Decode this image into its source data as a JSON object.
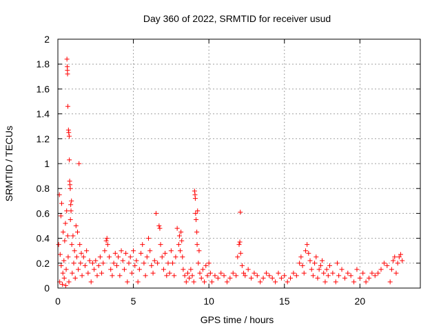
{
  "chart_data": {
    "type": "scatter",
    "title": "Day 360 of 2022, SRMTID for receiver usud",
    "xlabel": "GPS time / hours",
    "ylabel": "SRMTID / TECUs",
    "xlim": [
      0,
      24
    ],
    "ylim": [
      0,
      2
    ],
    "xticks": [
      0,
      5,
      10,
      15,
      20
    ],
    "xtick_labels": [
      "0",
      "5",
      "10",
      "15",
      "20"
    ],
    "yticks": [
      0,
      0.2,
      0.4,
      0.6,
      0.8,
      1.0,
      1.2,
      1.4,
      1.6,
      1.8,
      2.0
    ],
    "ytick_labels": [
      "0",
      "0.2",
      "0.4",
      "0.6",
      "0.8",
      "1",
      "1.2",
      "1.4",
      "1.6",
      "1.8",
      "2"
    ],
    "grid": true,
    "marker": "+",
    "marker_color": "#ff0000",
    "series": [
      {
        "name": "SRMTID",
        "points": [
          [
            0.05,
            0.35
          ],
          [
            0.1,
            0.75
          ],
          [
            0.12,
            0.05
          ],
          [
            0.15,
            0.27
          ],
          [
            0.2,
            0.58
          ],
          [
            0.22,
            0.18
          ],
          [
            0.25,
            0.68
          ],
          [
            0.3,
            0.03
          ],
          [
            0.33,
            0.12
          ],
          [
            0.35,
            0.45
          ],
          [
            0.4,
            0.22
          ],
          [
            0.42,
            0.08
          ],
          [
            0.45,
            0.38
          ],
          [
            0.5,
            0.52
          ],
          [
            0.52,
            0.02
          ],
          [
            0.55,
            0.15
          ],
          [
            0.58,
            0.62
          ],
          [
            0.6,
            1.84
          ],
          [
            0.62,
            1.78
          ],
          [
            0.63,
            1.75
          ],
          [
            0.64,
            1.72
          ],
          [
            0.65,
            0.42
          ],
          [
            0.66,
            1.46
          ],
          [
            0.68,
            0.25
          ],
          [
            0.7,
            1.27
          ],
          [
            0.72,
            1.25
          ],
          [
            0.73,
            0.05
          ],
          [
            0.75,
            1.22
          ],
          [
            0.76,
            1.03
          ],
          [
            0.78,
            0.86
          ],
          [
            0.8,
            0.83
          ],
          [
            0.82,
            0.8
          ],
          [
            0.83,
            0.55
          ],
          [
            0.85,
            0.67
          ],
          [
            0.87,
            0.62
          ],
          [
            0.9,
            0.7
          ],
          [
            0.92,
            0.35
          ],
          [
            0.95,
            0.12
          ],
          [
            1.0,
            0.42
          ],
          [
            1.05,
            0.2
          ],
          [
            1.1,
            0.3
          ],
          [
            1.15,
            0.08
          ],
          [
            1.2,
            0.5
          ],
          [
            1.25,
            0.25
          ],
          [
            1.3,
            0.45
          ],
          [
            1.35,
            0.15
          ],
          [
            1.4,
            1.0
          ],
          [
            1.45,
            0.35
          ],
          [
            1.5,
            0.2
          ],
          [
            1.55,
            0.28
          ],
          [
            1.6,
            0.1
          ],
          [
            1.7,
            0.25
          ],
          [
            1.8,
            0.18
          ],
          [
            1.9,
            0.3
          ],
          [
            2.0,
            0.12
          ],
          [
            2.1,
            0.22
          ],
          [
            2.2,
            0.05
          ],
          [
            2.3,
            0.2
          ],
          [
            2.4,
            0.15
          ],
          [
            2.5,
            0.22
          ],
          [
            2.6,
            0.1
          ],
          [
            2.7,
            0.18
          ],
          [
            2.8,
            0.25
          ],
          [
            2.9,
            0.12
          ],
          [
            3.0,
            0.2
          ],
          [
            3.1,
            0.3
          ],
          [
            3.2,
            0.38
          ],
          [
            3.25,
            0.4
          ],
          [
            3.3,
            0.35
          ],
          [
            3.4,
            0.25
          ],
          [
            3.5,
            0.15
          ],
          [
            3.6,
            0.1
          ],
          [
            3.7,
            0.2
          ],
          [
            3.8,
            0.28
          ],
          [
            3.9,
            0.18
          ],
          [
            4.0,
            0.25
          ],
          [
            4.1,
            0.1
          ],
          [
            4.2,
            0.3
          ],
          [
            4.3,
            0.22
          ],
          [
            4.4,
            0.15
          ],
          [
            4.5,
            0.28
          ],
          [
            4.6,
            0.05
          ],
          [
            4.7,
            0.2
          ],
          [
            4.8,
            0.25
          ],
          [
            4.9,
            0.12
          ],
          [
            5.0,
            0.3
          ],
          [
            5.1,
            0.18
          ],
          [
            5.2,
            0.22
          ],
          [
            5.3,
            0.05
          ],
          [
            5.4,
            0.15
          ],
          [
            5.5,
            0.28
          ],
          [
            5.6,
            0.35
          ],
          [
            5.7,
            0.2
          ],
          [
            5.8,
            0.1
          ],
          [
            5.9,
            0.25
          ],
          [
            6.0,
            0.4
          ],
          [
            6.1,
            0.3
          ],
          [
            6.2,
            0.18
          ],
          [
            6.3,
            0.12
          ],
          [
            6.4,
            0.22
          ],
          [
            6.5,
            0.6
          ],
          [
            6.6,
            0.2
          ],
          [
            6.7,
            0.5
          ],
          [
            6.75,
            0.48
          ],
          [
            6.8,
            0.35
          ],
          [
            6.9,
            0.25
          ],
          [
            7.0,
            0.15
          ],
          [
            7.1,
            0.28
          ],
          [
            7.2,
            0.1
          ],
          [
            7.3,
            0.2
          ],
          [
            7.4,
            0.12
          ],
          [
            7.5,
            0.3
          ],
          [
            7.6,
            0.2
          ],
          [
            7.7,
            0.1
          ],
          [
            7.8,
            0.25
          ],
          [
            7.9,
            0.48
          ],
          [
            8.0,
            0.35
          ],
          [
            8.05,
            0.42
          ],
          [
            8.1,
            0.3
          ],
          [
            8.15,
            0.45
          ],
          [
            8.2,
            0.38
          ],
          [
            8.25,
            0.25
          ],
          [
            8.3,
            0.15
          ],
          [
            8.4,
            0.1
          ],
          [
            8.5,
            0.05
          ],
          [
            8.6,
            0.12
          ],
          [
            8.7,
            0.08
          ],
          [
            8.8,
            0.15
          ],
          [
            8.9,
            0.1
          ],
          [
            9.0,
            0.05
          ],
          [
            9.05,
            0.78
          ],
          [
            9.08,
            0.75
          ],
          [
            9.1,
            0.72
          ],
          [
            9.12,
            0.6
          ],
          [
            9.15,
            0.55
          ],
          [
            9.2,
            0.45
          ],
          [
            9.22,
            0.35
          ],
          [
            9.25,
            0.62
          ],
          [
            9.3,
            0.2
          ],
          [
            9.35,
            0.3
          ],
          [
            9.4,
            0.12
          ],
          [
            9.5,
            0.08
          ],
          [
            9.6,
            0.15
          ],
          [
            9.7,
            0.05
          ],
          [
            9.8,
            0.18
          ],
          [
            9.9,
            0.1
          ],
          [
            10.0,
            0.2
          ],
          [
            10.1,
            0.12
          ],
          [
            10.2,
            0.05
          ],
          [
            10.4,
            0.1
          ],
          [
            10.6,
            0.08
          ],
          [
            10.8,
            0.12
          ],
          [
            11.0,
            0.1
          ],
          [
            11.2,
            0.05
          ],
          [
            11.4,
            0.08
          ],
          [
            11.6,
            0.12
          ],
          [
            11.8,
            0.1
          ],
          [
            11.9,
            0.25
          ],
          [
            12.0,
            0.35
          ],
          [
            12.05,
            0.37
          ],
          [
            12.08,
            0.61
          ],
          [
            12.1,
            0.28
          ],
          [
            12.2,
            0.18
          ],
          [
            12.3,
            0.12
          ],
          [
            12.4,
            0.1
          ],
          [
            12.6,
            0.15
          ],
          [
            12.8,
            0.08
          ],
          [
            13.0,
            0.12
          ],
          [
            13.2,
            0.1
          ],
          [
            13.4,
            0.05
          ],
          [
            13.6,
            0.08
          ],
          [
            13.8,
            0.12
          ],
          [
            14.0,
            0.1
          ],
          [
            14.2,
            0.08
          ],
          [
            14.4,
            0.05
          ],
          [
            14.6,
            0.12
          ],
          [
            14.8,
            0.08
          ],
          [
            15.0,
            0.1
          ],
          [
            15.2,
            0.05
          ],
          [
            15.4,
            0.08
          ],
          [
            15.6,
            0.12
          ],
          [
            15.8,
            0.1
          ],
          [
            16.0,
            0.2
          ],
          [
            16.1,
            0.25
          ],
          [
            16.2,
            0.18
          ],
          [
            16.3,
            0.12
          ],
          [
            16.4,
            0.3
          ],
          [
            16.5,
            0.35
          ],
          [
            16.6,
            0.28
          ],
          [
            16.7,
            0.22
          ],
          [
            16.8,
            0.15
          ],
          [
            16.9,
            0.1
          ],
          [
            17.0,
            0.2
          ],
          [
            17.1,
            0.25
          ],
          [
            17.2,
            0.08
          ],
          [
            17.3,
            0.15
          ],
          [
            17.4,
            0.18
          ],
          [
            17.5,
            0.22
          ],
          [
            17.6,
            0.12
          ],
          [
            17.7,
            0.05
          ],
          [
            17.8,
            0.15
          ],
          [
            17.9,
            0.1
          ],
          [
            18.0,
            0.18
          ],
          [
            18.2,
            0.12
          ],
          [
            18.4,
            0.05
          ],
          [
            18.5,
            0.2
          ],
          [
            18.6,
            0.1
          ],
          [
            18.8,
            0.15
          ],
          [
            19.0,
            0.08
          ],
          [
            19.2,
            0.12
          ],
          [
            19.4,
            0.1
          ],
          [
            19.6,
            0.05
          ],
          [
            19.8,
            0.15
          ],
          [
            20.0,
            0.08
          ],
          [
            20.2,
            0.12
          ],
          [
            20.4,
            0.05
          ],
          [
            20.6,
            0.08
          ],
          [
            20.8,
            0.12
          ],
          [
            21.0,
            0.1
          ],
          [
            21.2,
            0.12
          ],
          [
            21.4,
            0.15
          ],
          [
            21.6,
            0.2
          ],
          [
            21.8,
            0.18
          ],
          [
            22.0,
            0.05
          ],
          [
            22.1,
            0.15
          ],
          [
            22.2,
            0.22
          ],
          [
            22.3,
            0.25
          ],
          [
            22.4,
            0.12
          ],
          [
            22.5,
            0.2
          ],
          [
            22.6,
            0.25
          ],
          [
            22.7,
            0.27
          ],
          [
            22.8,
            0.22
          ]
        ]
      }
    ]
  }
}
